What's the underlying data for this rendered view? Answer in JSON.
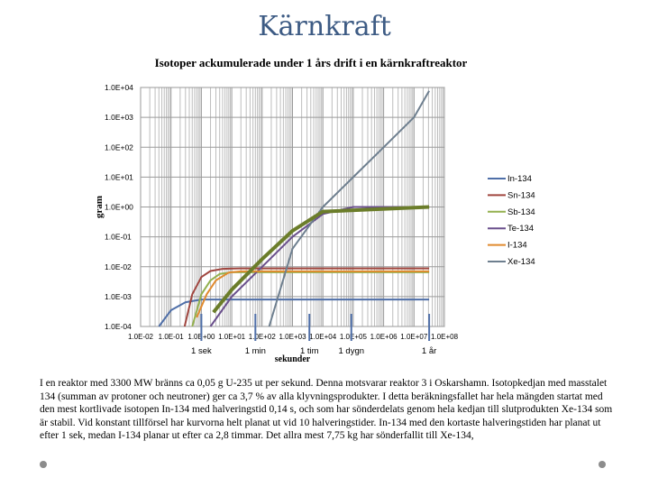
{
  "slide": {
    "title": "Kärnkraft",
    "body_text": "I en reaktor med 3300 MW bränns ca 0,05 g U-235 ut per sekund. Denna motsvarar reaktor 3 i Oskarshamn. Isotopkedjan med masstalet 134 (summan av protoner och neutroner) ger ca 3,7 % av alla klyvningsprodukter. I detta beräkningsfallet har hela mängden startat med den mest kortlivade isotopen In-134 med halveringstid 0,14 s, och som har sönderdelats genom hela kedjan till slutprodukten Xe-134 som är stabil. Vid konstant tillförsel har kurvorna helt planat ut vid 10 halveringstider. In-134 med den kortaste halveringstiden har planat ut efter 1 sek, medan I-134 planar ut efter ca 2,8 timmar. Det allra mest 7,75 kg har sönderfallit till Xe-134,"
  },
  "chart_data": {
    "type": "line",
    "title": "Isotoper ackumulerade under 1 års drift i en kärnkraftreaktor",
    "xlabel": "sekunder",
    "ylabel": "gram",
    "x_scale": "log",
    "y_scale": "log",
    "xlim": [
      0.01,
      100000000
    ],
    "ylim": [
      0.0001,
      10000
    ],
    "x_ticks": [
      "1.0E-02",
      "1.0E-01",
      "1.0E+00",
      "1.0E+01",
      "1.0E+02",
      "1.0E+03",
      "1.0E+04",
      "1.0E+05",
      "1.0E+06",
      "1.0E+07",
      "1.0E+08"
    ],
    "y_ticks": [
      "1.0E+04",
      "1.0E+03",
      "1.0E+02",
      "1.0E+01",
      "1.0E+00",
      "1.0E-01",
      "1.0E-02",
      "1.0E-03",
      "1.0E-04"
    ],
    "grid": true,
    "legend_position": "right",
    "time_markers": [
      {
        "label": "1 sek",
        "x": 1
      },
      {
        "label": "1 min",
        "x": 60
      },
      {
        "label": "1 tim",
        "x": 3600
      },
      {
        "label": "1 dygn",
        "x": 86400
      },
      {
        "label": "1 år",
        "x": 31536000
      }
    ],
    "series": [
      {
        "name": "In-134",
        "color": "#4f6fa8",
        "width": 2,
        "points": [
          [
            0.04,
            0.0001
          ],
          [
            0.1,
            0.00035
          ],
          [
            0.3,
            0.00065
          ],
          [
            1,
            0.0008
          ],
          [
            10,
            0.0008
          ],
          [
            31536000,
            0.0008
          ]
        ]
      },
      {
        "name": "Sn-134",
        "color": "#a0463f",
        "width": 2,
        "points": [
          [
            0.28,
            0.0001
          ],
          [
            0.5,
            0.0012
          ],
          [
            1,
            0.0045
          ],
          [
            2,
            0.0072
          ],
          [
            5,
            0.0085
          ],
          [
            20,
            0.0088
          ],
          [
            31536000,
            0.0088
          ]
        ]
      },
      {
        "name": "Sb-134",
        "color": "#93b04e",
        "width": 2,
        "points": [
          [
            0.5,
            0.0001
          ],
          [
            1,
            0.0012
          ],
          [
            2,
            0.0035
          ],
          [
            4,
            0.0057
          ],
          [
            10,
            0.0065
          ],
          [
            31536000,
            0.0065
          ]
        ]
      },
      {
        "name": "Te-134",
        "color": "#6a4f8c",
        "width": 2,
        "points": [
          [
            2,
            0.0001
          ],
          [
            10,
            0.001
          ],
          [
            100,
            0.01
          ],
          [
            1000,
            0.1
          ],
          [
            10000,
            0.58
          ],
          [
            100000,
            1.0
          ],
          [
            31536000,
            1.0
          ]
        ]
      },
      {
        "name": "I-134",
        "color": "#e08a2e",
        "width": 2,
        "points": [
          [
            0.7,
            0.0002
          ],
          [
            1.5,
            0.0012
          ],
          [
            3,
            0.0035
          ],
          [
            8,
            0.0064
          ],
          [
            20,
            0.007
          ],
          [
            31536000,
            0.007
          ]
        ]
      },
      {
        "name": "Xe-134",
        "color": "#6e7f8f",
        "width": 2,
        "points": [
          [
            170,
            0.0001
          ],
          [
            1000,
            0.04
          ],
          [
            10000,
            1
          ],
          [
            100000,
            10
          ],
          [
            1000000,
            100
          ],
          [
            10000000,
            1000
          ],
          [
            31536000,
            7750
          ]
        ]
      },
      {
        "name": "",
        "color": "#6b7d2a",
        "width": 4,
        "points": [
          [
            2.5,
            0.0003
          ],
          [
            10,
            0.0017
          ],
          [
            100,
            0.018
          ],
          [
            1000,
            0.16
          ],
          [
            10000,
            0.7
          ],
          [
            31536000,
            1.0
          ]
        ]
      }
    ]
  }
}
